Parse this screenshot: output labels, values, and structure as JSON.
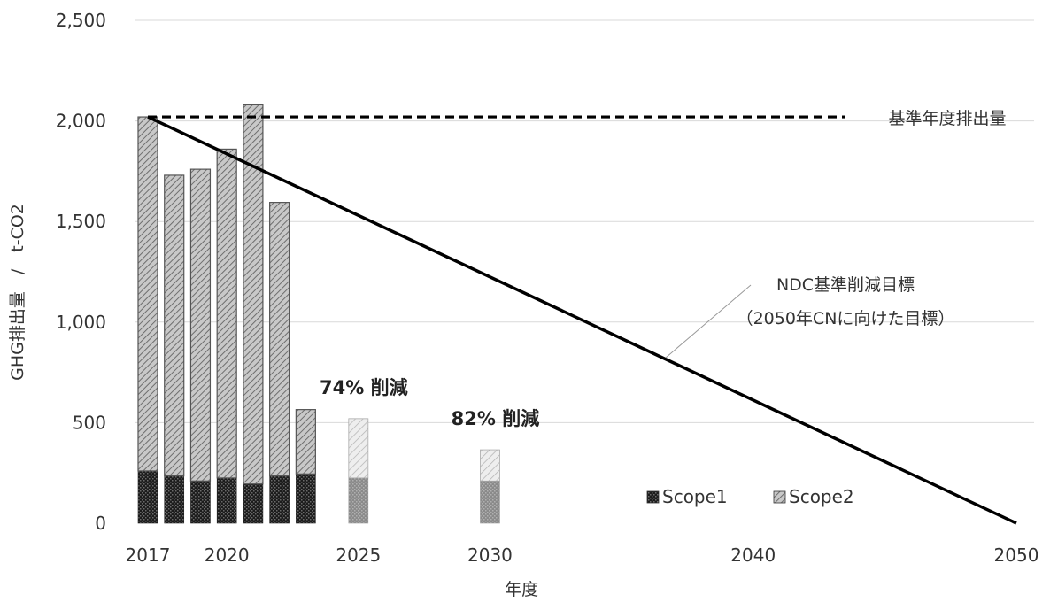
{
  "chart_data": {
    "type": "bar",
    "stacked": true,
    "xlabel": "年度",
    "ylabel": "GHG排出量　/　t-CO2",
    "ylim": [
      0,
      2500
    ],
    "xlim": [
      2017,
      2050
    ],
    "yticks": [
      0,
      500,
      1000,
      1500,
      2000,
      2500
    ],
    "ytick_labels": [
      "0",
      "500",
      "1,000",
      "1,500",
      "2,000",
      "2,500"
    ],
    "xticks": [
      2017,
      2020,
      2025,
      2030,
      2040,
      2050
    ],
    "xtick_labels": [
      "2017",
      "2020",
      "2025",
      "2030",
      "2040",
      "2050"
    ],
    "grid": true,
    "bars": [
      {
        "year": 2017,
        "scope1": 260,
        "scope2": 1760,
        "target": false
      },
      {
        "year": 2018,
        "scope1": 235,
        "scope2": 1495,
        "target": false
      },
      {
        "year": 2019,
        "scope1": 210,
        "scope2": 1550,
        "target": false
      },
      {
        "year": 2020,
        "scope1": 225,
        "scope2": 1635,
        "target": false
      },
      {
        "year": 2021,
        "scope1": 195,
        "scope2": 1885,
        "target": false
      },
      {
        "year": 2022,
        "scope1": 235,
        "scope2": 1360,
        "target": false
      },
      {
        "year": 2023,
        "scope1": 245,
        "scope2": 320,
        "target": false
      },
      {
        "year": 2025,
        "scope1": 225,
        "scope2": 295,
        "target": true
      },
      {
        "year": 2030,
        "scope1": 210,
        "scope2": 155,
        "target": true
      }
    ],
    "legend": {
      "position": "bottom-right",
      "items": [
        {
          "key": "scope1",
          "label": "Scope1"
        },
        {
          "key": "scope2",
          "label": "Scope2"
        }
      ]
    },
    "lines": [
      {
        "name": "基準年度排出量",
        "style": "dashed",
        "points": [
          [
            2017,
            2020
          ],
          [
            2043.5,
            2020
          ]
        ]
      },
      {
        "name_lines": [
          "NDC基準削減目標",
          "（2050年CNに向けた目標）"
        ],
        "style": "solid",
        "points": [
          [
            2017,
            2020
          ],
          [
            2050,
            0
          ]
        ]
      }
    ],
    "annotations": [
      {
        "text": "74% 削減",
        "year": 2025
      },
      {
        "text": "82% 削減",
        "year": 2030
      }
    ],
    "colors": {
      "scope1": "#111111",
      "scope2": "#a8a8a8",
      "grid": "#d9d9d9",
      "line": "#000000"
    }
  }
}
